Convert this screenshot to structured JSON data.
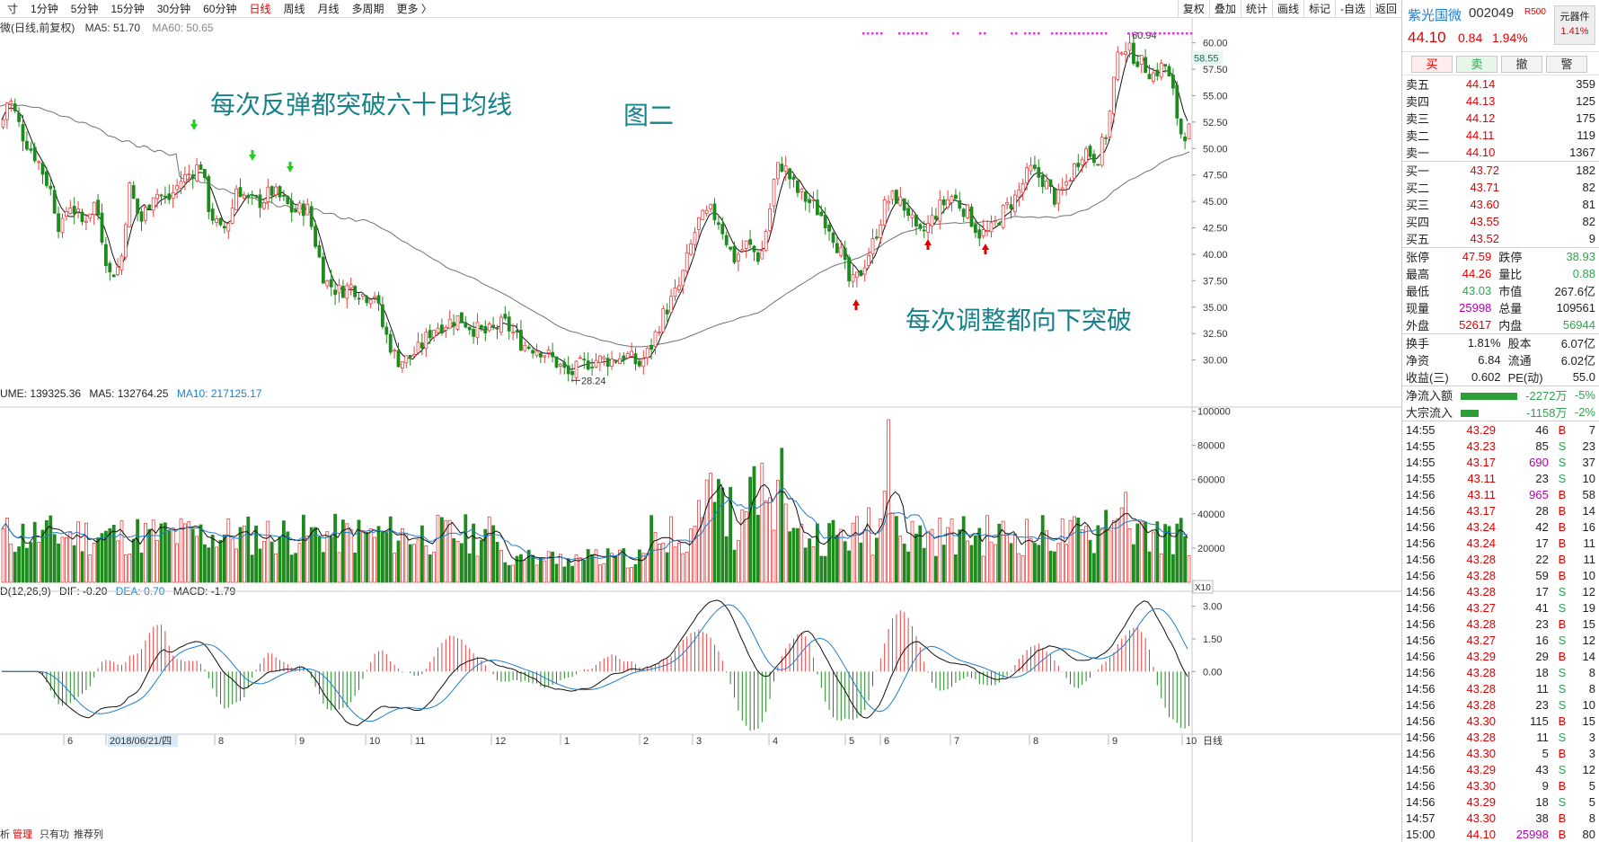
{
  "toolbar": {
    "periods": [
      {
        "label": "寸",
        "active": false
      },
      {
        "label": "1分钟",
        "active": false
      },
      {
        "label": "5分钟",
        "active": false
      },
      {
        "label": "15分钟",
        "active": false
      },
      {
        "label": "30分钟",
        "active": false
      },
      {
        "label": "60分钟",
        "active": false
      },
      {
        "label": "日线",
        "active": true
      },
      {
        "label": "周线",
        "active": false
      },
      {
        "label": "月线",
        "active": false
      },
      {
        "label": "多周期",
        "active": false
      },
      {
        "label": "更多 〉",
        "active": false
      }
    ],
    "tools": [
      "复权",
      "叠加",
      "统计",
      "画线",
      "标记",
      "-自选",
      "返回"
    ]
  },
  "main_chart": {
    "legend_title": "微(日线,前复权)",
    "ma5_label": "MA5: 51.70",
    "ma60_label": "MA60: 50.65",
    "high_label": "60.94",
    "low_label": "28.24",
    "current_price_tag": "58.55",
    "annotation_1": "每次反弹都突破六十日均线",
    "annotation_2": "图二",
    "annotation_3": "每次调整都向下突破",
    "y_ticks": [
      "60.00",
      "57.50",
      "55.00",
      "52.50",
      "50.00",
      "47.50",
      "45.00",
      "42.50",
      "40.00",
      "37.50",
      "35.00",
      "32.50",
      "30.00"
    ],
    "colors": {
      "up": "#e84040",
      "down": "#1f8a1f",
      "ma60": "#707070",
      "ma5": "#111111",
      "blue": "#1c7fd0"
    }
  },
  "volume_chart": {
    "label_vol": "UME: 139325.36",
    "label_ma5": "MA5: 132764.25",
    "label_ma10": "MA10: 217125.17",
    "y_ticks": [
      "100000",
      "80000",
      "60000",
      "40000",
      "20000"
    ],
    "unit_tag": "X10"
  },
  "macd_chart": {
    "label": "D(12,26,9)",
    "dif": "DIF: -0.20",
    "dea": "DEA: 0.70",
    "macd": "MACD: -1.79",
    "y_ticks": [
      "3.00",
      "1.50",
      "0.00"
    ]
  },
  "x_axis": {
    "labels": [
      "6",
      "2018/06/21/四",
      "8",
      "9",
      "10",
      "11",
      "12",
      "1",
      "2",
      "3",
      "4",
      "5",
      "6",
      "7",
      "8",
      "9",
      "10"
    ],
    "right_label": "日线"
  },
  "bottom_tabs": [
    "析",
    "管理",
    "只有功",
    "推荐列"
  ],
  "chart_data": {
    "type": "candlestick",
    "price_range": [
      28.24,
      60.94
    ],
    "y_range": [
      27.5,
      61.5
    ],
    "series": [
      {
        "name": "MA5",
        "value": 51.7
      },
      {
        "name": "MA60",
        "value": 50.65
      }
    ],
    "volume_range": [
      0,
      100000
    ],
    "macd_range": [
      -2.8,
      3.4
    ]
  },
  "quote": {
    "name": "紫光国微",
    "code": "002049",
    "badge": "R500",
    "sector": "元器件",
    "sector_pct": "1.41%",
    "price": "44.10",
    "change": "0.84",
    "change_pct": "1.94%",
    "buttons": [
      "买",
      "卖",
      "撤",
      "警"
    ],
    "asks": [
      {
        "label": "卖五",
        "price": "44.14",
        "vol": "359"
      },
      {
        "label": "卖四",
        "price": "44.13",
        "vol": "125"
      },
      {
        "label": "卖三",
        "price": "44.12",
        "vol": "175"
      },
      {
        "label": "卖二",
        "price": "44.11",
        "vol": "119"
      },
      {
        "label": "卖一",
        "price": "44.10",
        "vol": "1367"
      }
    ],
    "bids": [
      {
        "label": "买一",
        "price": "43.72",
        "vol": "182"
      },
      {
        "label": "买二",
        "price": "43.71",
        "vol": "82"
      },
      {
        "label": "买三",
        "price": "43.60",
        "vol": "81"
      },
      {
        "label": "买四",
        "price": "43.55",
        "vol": "82"
      },
      {
        "label": "买五",
        "price": "43.52",
        "vol": "9"
      }
    ],
    "stats": [
      {
        "l1": "张停",
        "v1": "47.59",
        "c1": "red",
        "l2": "跌停",
        "v2": "38.93",
        "c2": "grn"
      },
      {
        "l1": "最高",
        "v1": "44.26",
        "c1": "red",
        "l2": "量比",
        "v2": "0.88",
        "c2": "grn"
      },
      {
        "l1": "最低",
        "v1": "43.03",
        "c1": "grn",
        "l2": "市值",
        "v2": "267.6亿",
        "c2": "dark"
      },
      {
        "l1": "现量",
        "v1": "25998",
        "c1": "pur",
        "l2": "总量",
        "v2": "109561",
        "c2": "dark"
      },
      {
        "l1": "外盘",
        "v1": "52617",
        "c1": "red",
        "l2": "内盘",
        "v2": "56944",
        "c2": "grn"
      }
    ],
    "stats2": [
      {
        "l1": "换手",
        "v1": "1.81%",
        "l2": "股本",
        "v2": "6.07亿"
      },
      {
        "l1": "净资",
        "v1": "6.84",
        "l2": "流通",
        "v2": "6.02亿"
      },
      {
        "l1": "收益(三)",
        "v1": "0.602",
        "l2": "PE(动)",
        "v2": "55.0"
      }
    ],
    "flows": [
      {
        "label": "净流入额",
        "value": "-2272万",
        "pct": "-5%",
        "ratio": 0.9
      },
      {
        "label": "大宗流入",
        "value": "-1158万",
        "pct": "-2%",
        "ratio": 0.28
      }
    ],
    "ticks": [
      {
        "t": "14:55",
        "p": "43.29",
        "v": "46",
        "s": "B",
        "n": "7"
      },
      {
        "t": "14:55",
        "p": "43.23",
        "v": "85",
        "s": "S",
        "n": "23"
      },
      {
        "t": "14:55",
        "p": "43.17",
        "v": "690",
        "s": "S",
        "n": "37"
      },
      {
        "t": "14:55",
        "p": "43.11",
        "v": "23",
        "s": "S",
        "n": "10"
      },
      {
        "t": "14:56",
        "p": "43.11",
        "v": "965",
        "s": "B",
        "n": "58"
      },
      {
        "t": "14:56",
        "p": "43.17",
        "v": "28",
        "s": "B",
        "n": "14"
      },
      {
        "t": "14:56",
        "p": "43.24",
        "v": "42",
        "s": "B",
        "n": "16"
      },
      {
        "t": "14:56",
        "p": "43.24",
        "v": "17",
        "s": "B",
        "n": "11"
      },
      {
        "t": "14:56",
        "p": "43.28",
        "v": "22",
        "s": "B",
        "n": "11"
      },
      {
        "t": "14:56",
        "p": "43.28",
        "v": "59",
        "s": "B",
        "n": "10"
      },
      {
        "t": "14:56",
        "p": "43.28",
        "v": "17",
        "s": "S",
        "n": "12"
      },
      {
        "t": "14:56",
        "p": "43.27",
        "v": "41",
        "s": "S",
        "n": "19"
      },
      {
        "t": "14:56",
        "p": "43.28",
        "v": "23",
        "s": "B",
        "n": "15"
      },
      {
        "t": "14:56",
        "p": "43.27",
        "v": "16",
        "s": "S",
        "n": "12"
      },
      {
        "t": "14:56",
        "p": "43.29",
        "v": "29",
        "s": "B",
        "n": "14"
      },
      {
        "t": "14:56",
        "p": "43.28",
        "v": "18",
        "s": "S",
        "n": "8"
      },
      {
        "t": "14:56",
        "p": "43.28",
        "v": "11",
        "s": "S",
        "n": "8"
      },
      {
        "t": "14:56",
        "p": "43.28",
        "v": "23",
        "s": "S",
        "n": "10"
      },
      {
        "t": "14:56",
        "p": "43.30",
        "v": "115",
        "s": "B",
        "n": "15"
      },
      {
        "t": "14:56",
        "p": "43.28",
        "v": "11",
        "s": "S",
        "n": "3"
      },
      {
        "t": "14:56",
        "p": "43.30",
        "v": "5",
        "s": "B",
        "n": "3"
      },
      {
        "t": "14:56",
        "p": "43.29",
        "v": "43",
        "s": "S",
        "n": "12"
      },
      {
        "t": "14:56",
        "p": "43.30",
        "v": "9",
        "s": "B",
        "n": "5"
      },
      {
        "t": "14:56",
        "p": "43.29",
        "v": "18",
        "s": "S",
        "n": "5"
      },
      {
        "t": "14:57",
        "p": "43.30",
        "v": "38",
        "s": "B",
        "n": "8"
      },
      {
        "t": "15:00",
        "p": "44.10",
        "v": "25998",
        "s": "B",
        "n": "80"
      }
    ]
  }
}
